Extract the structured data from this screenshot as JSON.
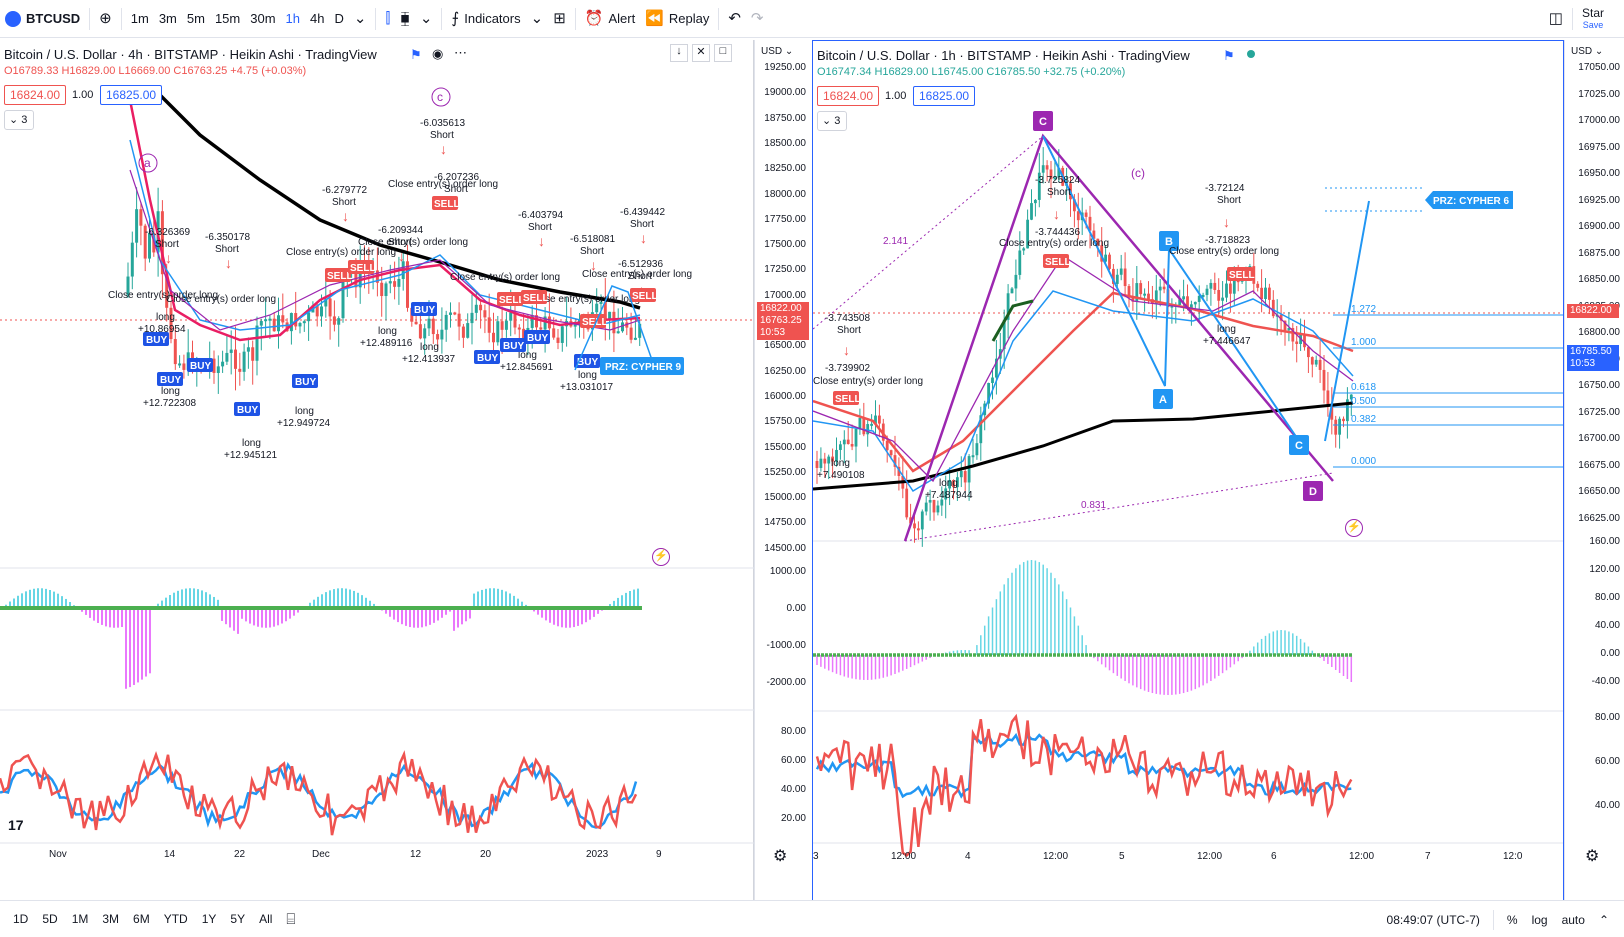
{
  "toolbar": {
    "symbol": "BTCUSD",
    "intervals": [
      "1m",
      "3m",
      "5m",
      "15m",
      "30m",
      "1h",
      "4h",
      "D"
    ],
    "active_interval": "1h",
    "indicators_label": "Indicators",
    "alert_label": "Alert",
    "replay_label": "Replay",
    "star_label": "Star",
    "save_label": "Save"
  },
  "left_chart": {
    "title": "Bitcoin / U.S. Dollar · 4h · BITSTAMP · Heikin Ashi · TradingView",
    "ohlc": "O16789.33 H16829.00 L16669.00 C16763.25 +4.75 (+0.03%)",
    "bid": "16824.00",
    "spread": "1.00",
    "ask": "16825.00",
    "collapse": "3",
    "currency": "USD",
    "price_axis": [
      "19250.00",
      "19000.00",
      "18750.00",
      "18500.00",
      "18250.00",
      "18000.00",
      "17750.00",
      "17500.00",
      "17250.00",
      "17000.00",
      "16750.00",
      "16500.00",
      "16250.00",
      "16000.00",
      "15750.00",
      "15500.00",
      "15250.00",
      "15000.00",
      "14750.00",
      "14500.00"
    ],
    "last_price": "16822.00",
    "last_price2": "16763.25",
    "countdown": "10:53",
    "osc1_axis": [
      "1000.00",
      "0.00",
      "-1000.00",
      "-2000.00"
    ],
    "osc2_axis": [
      "80.00",
      "60.00",
      "40.00",
      "20.00"
    ],
    "time_axis": [
      "Nov",
      "14",
      "22",
      "Dec",
      "12",
      "20",
      "2023",
      "9"
    ],
    "wave_labels": [
      "a",
      "c"
    ],
    "pattern_label": "PRZ: CYPHER 9",
    "annotations": [
      "-6.035613",
      "-6.207236",
      "-6.326369",
      "-6.350178",
      "-6.279772",
      "-6.209344",
      "-6.403794",
      "-6.518081",
      "-6.439442",
      "-6.512936",
      "+10.86954",
      "+12.722308",
      "+12.945121",
      "+12.949724",
      "+12.489116",
      "+12.413937",
      "+12.845691",
      "+13.031017"
    ],
    "short_label": "Short",
    "long_label": "long",
    "close_label": "Close entry(s) order long",
    "buy_label": "BUY",
    "sell_label": "SELL"
  },
  "right_chart": {
    "title": "Bitcoin / U.S. Dollar · 1h · BITSTAMP · Heikin Ashi · TradingView",
    "ohlc": "O16747.34 H16829.00 L16745.00 C16785.50 +32.75 (+0.20%)",
    "bid": "16824.00",
    "spread": "1.00",
    "ask": "16825.00",
    "collapse": "3",
    "currency": "USD",
    "price_axis": [
      "17050.00",
      "17025.00",
      "17000.00",
      "16975.00",
      "16950.00",
      "16925.00",
      "16900.00",
      "16875.00",
      "16850.00",
      "16825.00",
      "16800.00",
      "16775.00",
      "16750.00",
      "16725.00",
      "16700.00",
      "16675.00",
      "16650.00",
      "16625.00"
    ],
    "last_price": "16822.00",
    "last_price2": "16785.50",
    "countdown": "10:53",
    "osc1_axis": [
      "160.00",
      "120.00",
      "80.00",
      "40.00",
      "0.00",
      "-40.00"
    ],
    "osc2_axis": [
      "80.00",
      "60.00",
      "40.00"
    ],
    "time_axis": [
      "3",
      "12:00",
      "4",
      "12:00",
      "5",
      "12:00",
      "6",
      "12:00",
      "7",
      "12:0"
    ],
    "points": [
      "C",
      "B",
      "A",
      "C",
      "D"
    ],
    "wave_label": "(c)",
    "pattern_label": "PRZ: CYPHER 6",
    "fib_levels": [
      "1.272",
      "1.000",
      "0.618",
      "0.500",
      "0.382",
      "0.000"
    ],
    "ratio_labels": [
      "2.141",
      "0.831"
    ],
    "annotations": [
      "-3.725824",
      "-3.744436",
      "-3.72124",
      "-3.718823",
      "-3.743508",
      "-3.739902",
      "+7.490108",
      "+7.487944",
      "+7.446647"
    ],
    "short_label": "Short",
    "long_label": "long",
    "close_label": "Close entry(s) order long",
    "sell_label": "SELL"
  },
  "bottombar": {
    "ranges": [
      "1D",
      "5D",
      "1M",
      "3M",
      "6M",
      "YTD",
      "1Y",
      "5Y",
      "All"
    ],
    "clock": "08:49:07 (UTC-7)",
    "percent": "%",
    "log": "log",
    "auto": "auto"
  }
}
